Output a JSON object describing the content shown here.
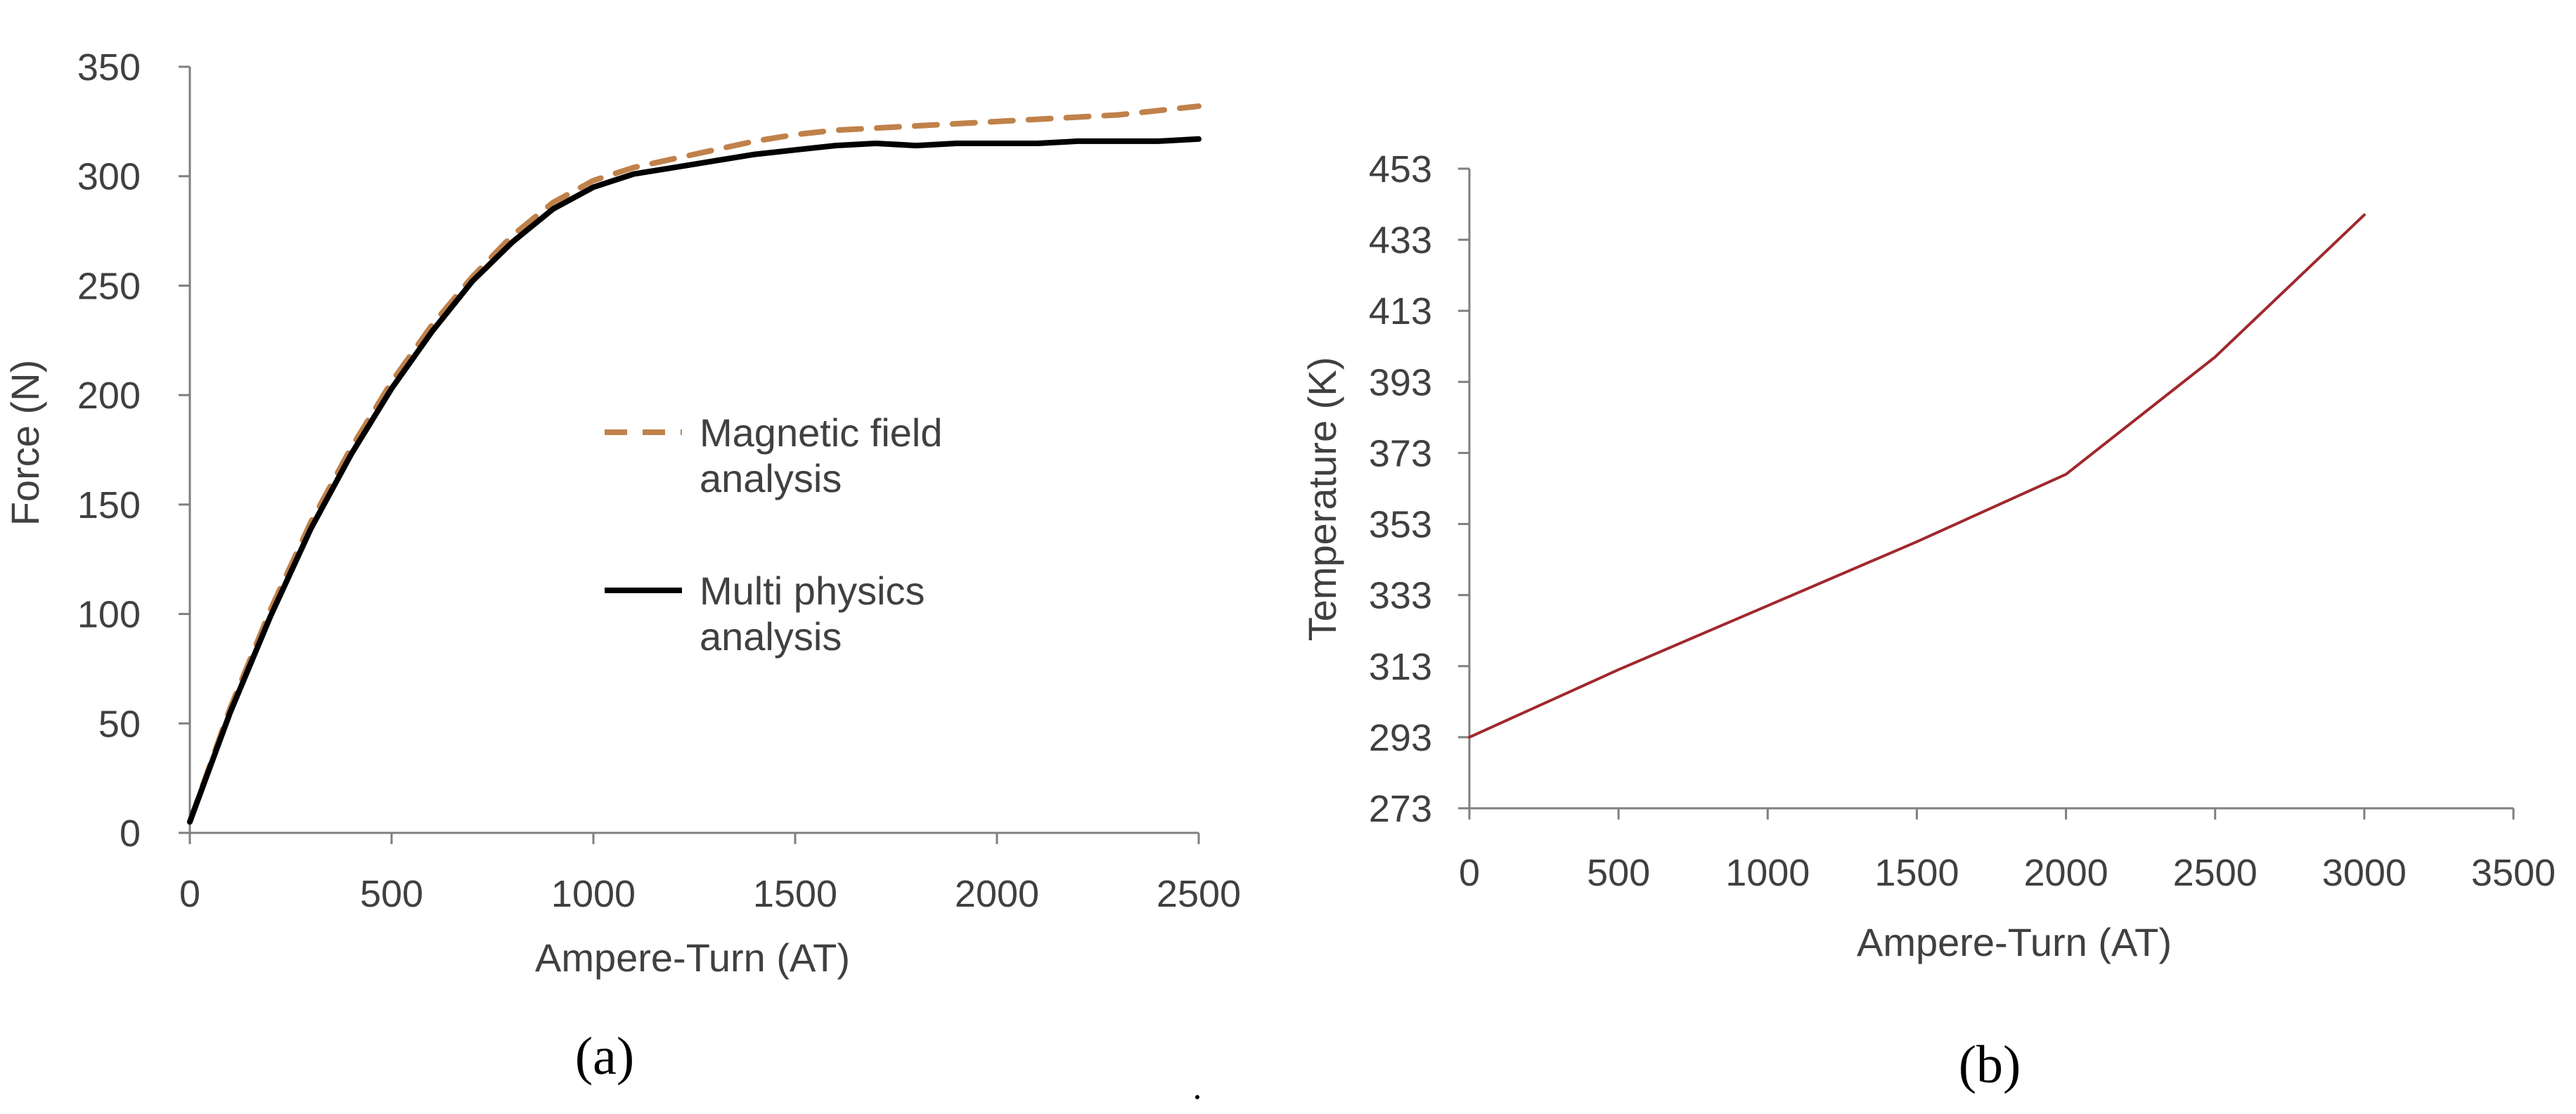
{
  "chart_data": [
    {
      "type": "line",
      "panel": "a",
      "caption": "(a)",
      "title": "",
      "xlabel": "Ampere-Turn (AT)",
      "ylabel": "Force (N)",
      "xlim": [
        0,
        2500
      ],
      "ylim": [
        0,
        350
      ],
      "xticks": [
        0,
        500,
        1000,
        1500,
        2000,
        2500
      ],
      "yticks": [
        0,
        50,
        100,
        150,
        200,
        250,
        300,
        350
      ],
      "grid": false,
      "legend_position": "center-right",
      "series": [
        {
          "name_lines": [
            "Magnetic field",
            "analysis"
          ],
          "color": "#C0814A",
          "style": "dashed",
          "x": [
            0,
            100,
            200,
            300,
            400,
            500,
            600,
            700,
            800,
            900,
            1000,
            1100,
            1200,
            1300,
            1400,
            1500,
            1600,
            1700,
            1800,
            1900,
            2000,
            2100,
            2200,
            2300,
            2400,
            2500
          ],
          "y": [
            5,
            57,
            102,
            142,
            176,
            206,
            232,
            254,
            273,
            288,
            298,
            304,
            308,
            312,
            316,
            319,
            321,
            322,
            323,
            324,
            325,
            326,
            327,
            328,
            330,
            332
          ]
        },
        {
          "name_lines": [
            "Multi physics",
            "analysis"
          ],
          "color": "#000000",
          "style": "solid",
          "x": [
            0,
            100,
            200,
            300,
            400,
            500,
            600,
            700,
            800,
            900,
            1000,
            1100,
            1200,
            1300,
            1400,
            1500,
            1600,
            1700,
            1800,
            1900,
            2000,
            2100,
            2200,
            2300,
            2400,
            2500
          ],
          "y": [
            5,
            55,
            99,
            139,
            173,
            203,
            229,
            252,
            270,
            285,
            295,
            301,
            304,
            307,
            310,
            312,
            314,
            315,
            314,
            315,
            315,
            315,
            316,
            316,
            316,
            317
          ]
        }
      ]
    },
    {
      "type": "line",
      "panel": "b",
      "caption": "(b)",
      "title": "",
      "xlabel": "Ampere-Turn (AT)",
      "ylabel": "Temperature (K)",
      "xlim": [
        0,
        3500
      ],
      "ylim": [
        273,
        453
      ],
      "xticks": [
        0,
        500,
        1000,
        1500,
        2000,
        2500,
        3000,
        3500
      ],
      "yticks": [
        273,
        293,
        313,
        333,
        353,
        373,
        393,
        413,
        433,
        453
      ],
      "grid": false,
      "series": [
        {
          "name": "Temperature",
          "color": "#A0282D",
          "style": "solid",
          "x": [
            0,
            500,
            1000,
            1500,
            2000,
            2500,
            3000
          ],
          "y": [
            293,
            312,
            330,
            348,
            367,
            400,
            440
          ]
        }
      ]
    }
  ]
}
